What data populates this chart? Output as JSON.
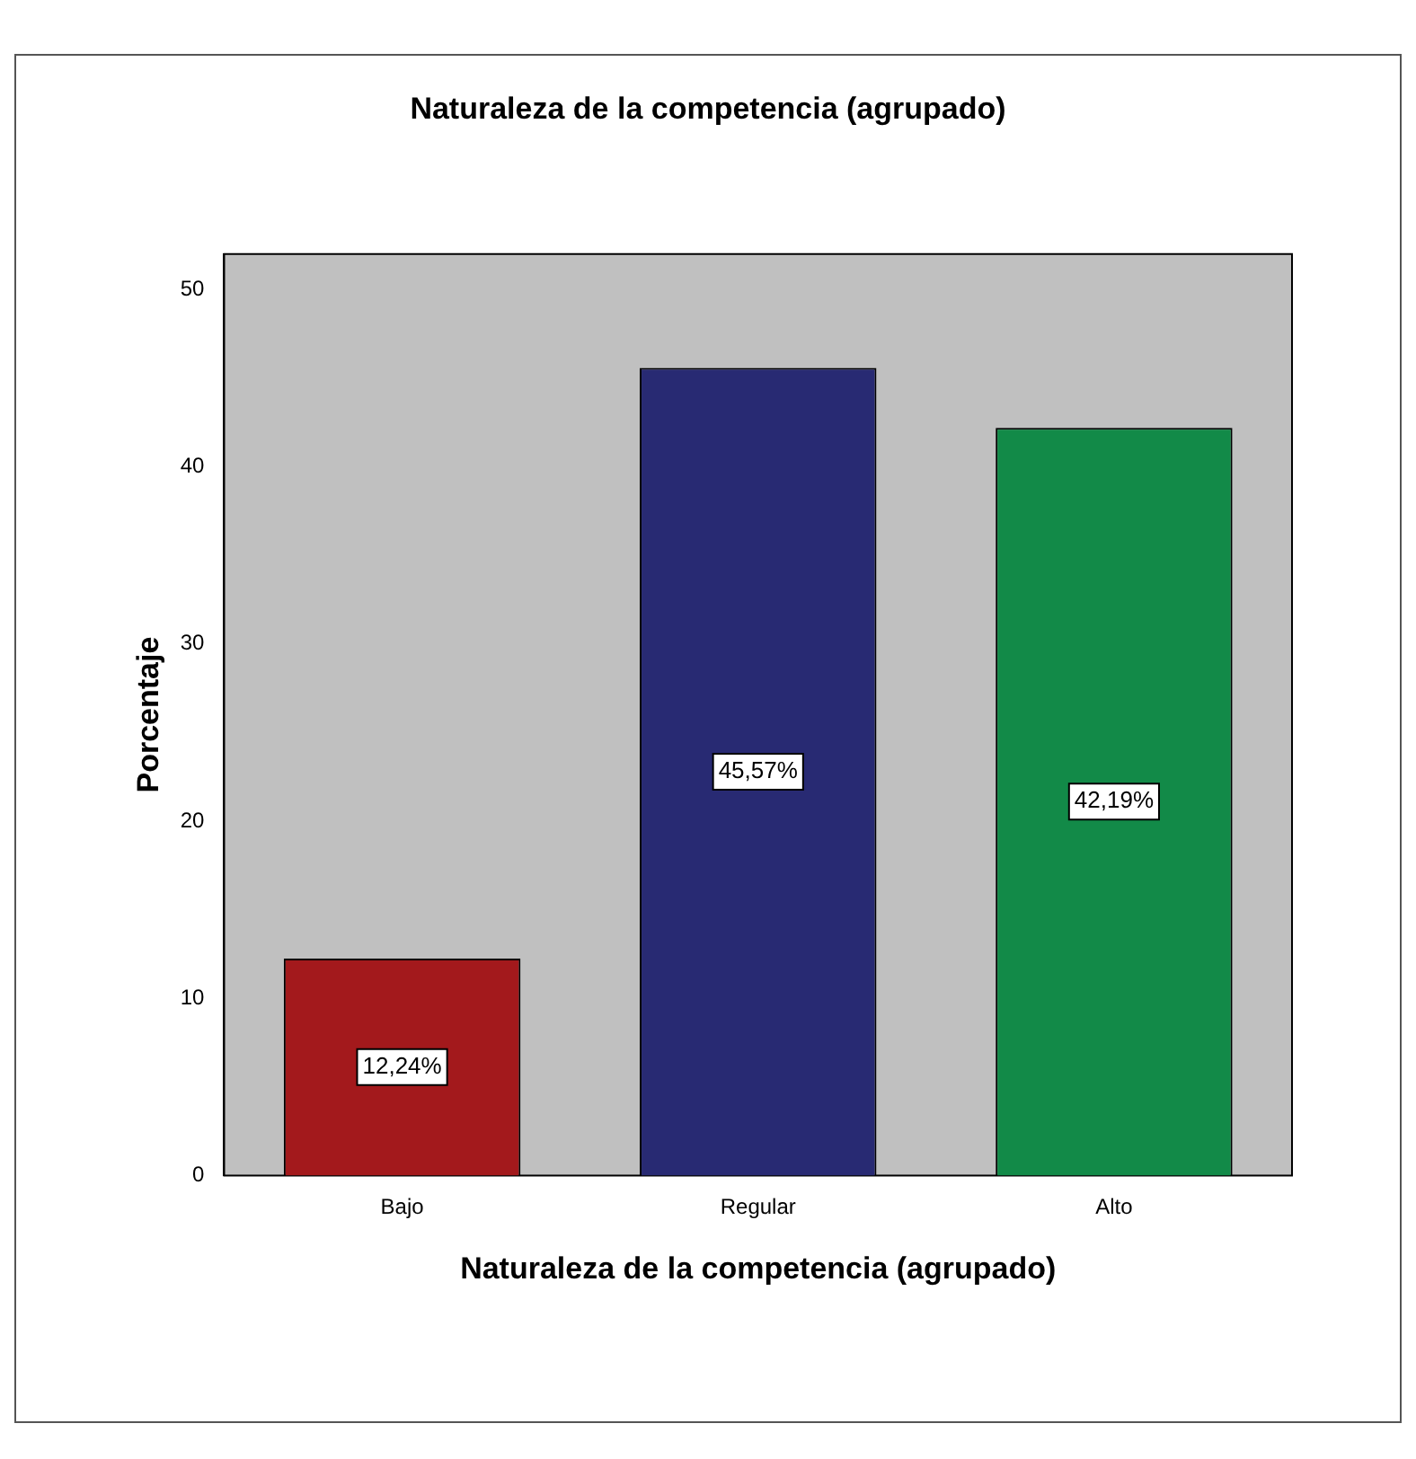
{
  "chart_data": {
    "type": "bar",
    "title": "Naturaleza de la competencia (agrupado)",
    "xlabel": "Naturaleza de la competencia (agrupado)",
    "ylabel": "Porcentaje",
    "categories": [
      "Bajo",
      "Regular",
      "Alto"
    ],
    "values": [
      12.24,
      45.57,
      42.19
    ],
    "colors": [
      "#a3191c",
      "#282a73",
      "#128a48"
    ],
    "value_labels": [
      "12,24%",
      "45,57%",
      "42,19%"
    ],
    "ylim": [
      0,
      52
    ],
    "yticks": [
      0,
      10,
      20,
      30,
      40,
      50
    ],
    "grid": false,
    "legend": false
  }
}
